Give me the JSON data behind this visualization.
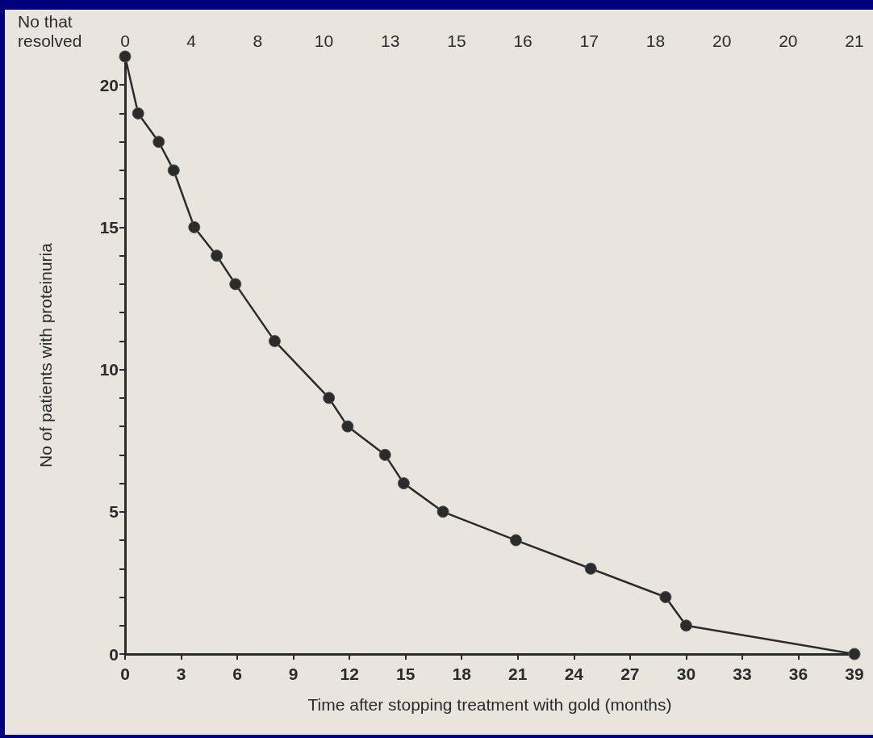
{
  "chart_data": {
    "type": "line",
    "xlabel": "Time after stopping treatment with gold (months)",
    "ylabel": "No of patients with proteinuria",
    "x": [
      0,
      0.7,
      1.8,
      2.6,
      3.7,
      4.9,
      5.9,
      8,
      10.9,
      11.9,
      13.9,
      14.9,
      17,
      20.9,
      24.9,
      28.9,
      30,
      39
    ],
    "series": [
      {
        "color": "#2b2b2b",
        "values": [
          21,
          19,
          18,
          17,
          15,
          14,
          13,
          11,
          9,
          8,
          7,
          6,
          5,
          4,
          3,
          2,
          1,
          0
        ]
      }
    ],
    "xlim": [
      0,
      39
    ],
    "xticks": [
      0,
      3,
      6,
      9,
      12,
      15,
      18,
      21,
      24,
      27,
      30,
      33,
      36,
      39
    ],
    "annotations": [
      "No that resolved",
      "0",
      "4",
      "8",
      "10",
      "13",
      "15",
      "16",
      "17",
      "18",
      "20",
      "20",
      "21"
    ],
    "ylim": [
      0,
      21
    ],
    "yticks": [
      0,
      {
        "value": 1,
        "label": null
      },
      {
        "value": 2,
        "label": null
      },
      {
        "value": 3,
        "label": null
      },
      {
        "value": 4,
        "label": null
      },
      5,
      {
        "value": 6,
        "label": null
      },
      {
        "value": 7,
        "label": null
      },
      {
        "value": 8,
        "label": null
      },
      {
        "value": 9,
        "label": null
      },
      10,
      {
        "value": 11,
        "label": null
      },
      {
        "value": 12,
        "label": null
      },
      {
        "value": 13,
        "label": null
      },
      {
        "value": 14,
        "label": null
      },
      15,
      {
        "value": 16,
        "label": null
      },
      {
        "value": 17,
        "label": null
      },
      {
        "value": 18,
        "label": null
      },
      {
        "value": 19,
        "label": null
      },
      20
    ],
    "marker": "circle",
    "line_style": "solid",
    "grid": false
  }
}
